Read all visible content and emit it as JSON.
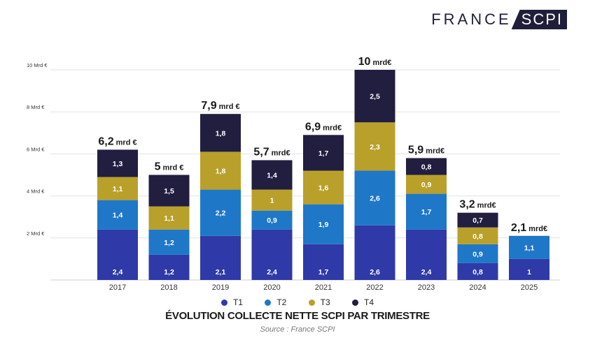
{
  "brand": {
    "part1": "FRANCE",
    "part2": "SCPI"
  },
  "colors": {
    "T1": "#2f3aa8",
    "T2": "#1f77c8",
    "T3": "#b9a02a",
    "T4": "#211e40"
  },
  "chart_data": {
    "type": "bar",
    "stacked": true,
    "title": "ÉVOLUTION COLLECTE NETTE  SCPI PAR TRIMESTRE",
    "source": "Source : France SCPI",
    "categories": [
      "2017",
      "2018",
      "2019",
      "2020",
      "2021",
      "2022",
      "2023",
      "2024",
      "2025"
    ],
    "series": [
      {
        "name": "T1",
        "values": [
          2.4,
          1.2,
          2.1,
          2.4,
          1.7,
          2.6,
          2.4,
          0.8,
          1
        ],
        "labels": [
          "2,4",
          "1,2",
          "2,1",
          "2,4",
          "1,7",
          "2,6",
          "2,4",
          "0,8",
          "1"
        ]
      },
      {
        "name": "T2",
        "values": [
          1.4,
          1.2,
          2.2,
          0.9,
          1.9,
          2.6,
          1.7,
          0.9,
          1.1
        ],
        "labels": [
          "1,4",
          "1,2",
          "2,2",
          "0,9",
          "1,9",
          "2,6",
          "1,7",
          "0,9",
          "1,1"
        ]
      },
      {
        "name": "T3",
        "values": [
          1.1,
          1.1,
          1.8,
          1,
          1.6,
          2.3,
          0.9,
          0.8,
          0
        ],
        "labels": [
          "1,1",
          "1,1",
          "1,8",
          "1",
          "1,6",
          "2,3",
          "0,9",
          "0,8",
          ""
        ]
      },
      {
        "name": "T4",
        "values": [
          1.3,
          1.5,
          1.8,
          1.4,
          1.7,
          2.5,
          0.8,
          0.7,
          0
        ],
        "labels": [
          "1,3",
          "1,5",
          "1,8",
          "1,4",
          "1,7",
          "2,5",
          "0,8",
          "0,7",
          ""
        ]
      }
    ],
    "totals": [
      {
        "value": "6,2",
        "unit": "mrd €"
      },
      {
        "value": "5",
        "unit": "mrd €"
      },
      {
        "value": "7,9",
        "unit": "mrd €"
      },
      {
        "value": "5,7",
        "unit": "mrd€"
      },
      {
        "value": "6,9",
        "unit": "mrd€"
      },
      {
        "value": "10",
        "unit": "mrd€"
      },
      {
        "value": "5,9",
        "unit": "mrd€"
      },
      {
        "value": "3,2",
        "unit": "mrd€"
      },
      {
        "value": "2,1",
        "unit": "mrd€"
      }
    ],
    "y_ticks": [
      {
        "value": 2,
        "label": "2 Mrd €"
      },
      {
        "value": 4,
        "label": "4 Mrd €"
      },
      {
        "value": 6,
        "label": "6 Mrd €"
      },
      {
        "value": 8,
        "label": "8 Mrd €"
      },
      {
        "value": 10,
        "label": "10 Mrd €"
      }
    ],
    "ylim": [
      0,
      10
    ],
    "grid": true,
    "legend_position": "bottom-center"
  }
}
